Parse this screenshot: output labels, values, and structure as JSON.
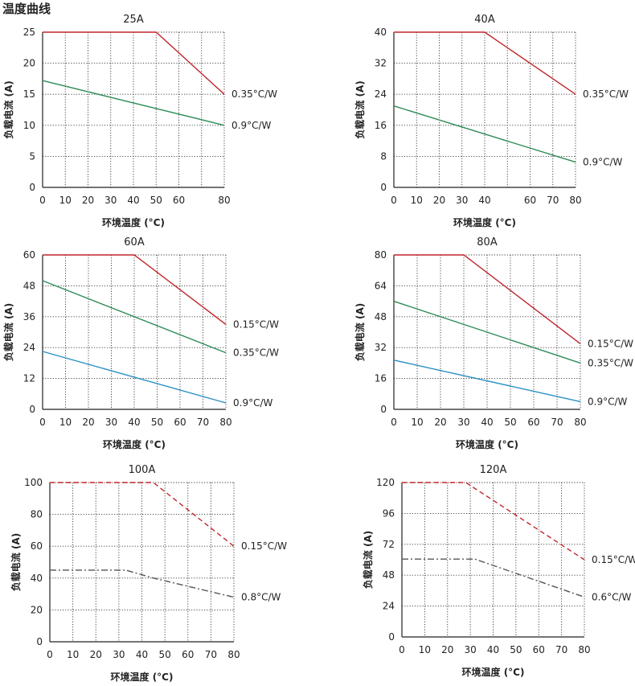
{
  "page": {
    "title": "温度曲线"
  },
  "chart_data": [
    {
      "type": "line",
      "title": "25A",
      "xlabel": "环境温度 (°C)",
      "ylabel": "负载电流 (A)",
      "xlim": [
        0,
        80
      ],
      "ylim": [
        0,
        25
      ],
      "x_ticks": [
        0,
        10,
        20,
        30,
        40,
        50,
        60,
        80
      ],
      "y_ticks": [
        0,
        5,
        10,
        15,
        20,
        25
      ],
      "grid": true,
      "series": [
        {
          "name": "0.35°C/W",
          "color": "#c0272d",
          "dash": "solid",
          "points": [
            [
              0,
              25
            ],
            [
              50,
              25
            ],
            [
              80,
              15
            ]
          ]
        },
        {
          "name": "0.9°C/W",
          "color": "#2e8b57",
          "dash": "solid",
          "points": [
            [
              0,
              17.2
            ],
            [
              80,
              10
            ]
          ]
        }
      ]
    },
    {
      "type": "line",
      "title": "40A",
      "xlabel": "环境温度 (°C)",
      "ylabel": "负载电流 (A)",
      "xlim": [
        0,
        80
      ],
      "ylim": [
        0,
        40
      ],
      "x_ticks": [
        0,
        10,
        20,
        30,
        40,
        60,
        70,
        80
      ],
      "y_ticks": [
        0,
        8,
        16,
        24,
        32,
        40
      ],
      "grid": true,
      "series": [
        {
          "name": "0.35°C/W",
          "color": "#c0272d",
          "dash": "solid",
          "points": [
            [
              0,
              40
            ],
            [
              40,
              40
            ],
            [
              80,
              24
            ]
          ]
        },
        {
          "name": "0.9°C/W",
          "color": "#2e8b57",
          "dash": "solid",
          "points": [
            [
              0,
              21
            ],
            [
              80,
              6.5
            ]
          ]
        }
      ]
    },
    {
      "type": "line",
      "title": "60A",
      "xlabel": "环境温度 (°C)",
      "ylabel": "负载电流 (A)",
      "xlim": [
        0,
        80
      ],
      "ylim": [
        0,
        60
      ],
      "x_ticks": [
        0,
        10,
        20,
        30,
        40,
        50,
        60,
        70,
        80
      ],
      "y_ticks": [
        0,
        12,
        24,
        36,
        48,
        60
      ],
      "grid": true,
      "series": [
        {
          "name": "0.15°C/W",
          "color": "#c0272d",
          "dash": "solid",
          "points": [
            [
              0,
              60
            ],
            [
              40,
              60
            ],
            [
              80,
              33
            ]
          ]
        },
        {
          "name": "0.35°C/W",
          "color": "#2e8b57",
          "dash": "solid",
          "points": [
            [
              0,
              50
            ],
            [
              80,
              22
            ]
          ]
        },
        {
          "name": "0.9°C/W",
          "color": "#2a8fc4",
          "dash": "solid",
          "points": [
            [
              0,
              22.5
            ],
            [
              80,
              2.5
            ]
          ]
        }
      ]
    },
    {
      "type": "line",
      "title": "80A",
      "xlabel": "环境温度 (°C)",
      "ylabel": "负载电流 (A)",
      "xlim": [
        0,
        80
      ],
      "ylim": [
        0,
        80
      ],
      "x_ticks": [
        0,
        10,
        20,
        30,
        40,
        50,
        60,
        70,
        80
      ],
      "y_ticks": [
        0,
        16,
        32,
        48,
        64,
        80
      ],
      "grid": true,
      "series": [
        {
          "name": "0.15°C/W",
          "color": "#c0272d",
          "dash": "solid",
          "points": [
            [
              0,
              80
            ],
            [
              30,
              80
            ],
            [
              80,
              34
            ]
          ]
        },
        {
          "name": "0.35°C/W",
          "color": "#2e8b57",
          "dash": "solid",
          "points": [
            [
              0,
              56
            ],
            [
              80,
              24
            ]
          ]
        },
        {
          "name": "0.9°C/W",
          "color": "#2a8fc4",
          "dash": "solid",
          "points": [
            [
              0,
              25.5
            ],
            [
              80,
              4
            ]
          ]
        }
      ]
    },
    {
      "type": "line",
      "title": "100A",
      "xlabel": "环境温度 (°C)",
      "ylabel": "负载电流 (A)",
      "xlim": [
        0,
        80
      ],
      "ylim": [
        0,
        100
      ],
      "x_ticks": [
        0,
        10,
        20,
        30,
        40,
        50,
        60,
        70,
        80
      ],
      "y_ticks": [
        0,
        20,
        40,
        60,
        80,
        100
      ],
      "grid": true,
      "series": [
        {
          "name": "0.15°C/W",
          "color": "#c0272d",
          "dash": "dash",
          "points": [
            [
              0,
              100
            ],
            [
              45,
              100
            ],
            [
              80,
              60
            ]
          ]
        },
        {
          "name": "0.8°C/W",
          "color": "#555555",
          "dash": "dashdot",
          "points": [
            [
              0,
              45
            ],
            [
              33,
              45
            ],
            [
              45,
              40
            ],
            [
              80,
              28
            ]
          ]
        }
      ]
    },
    {
      "type": "line",
      "title": "120A",
      "xlabel": "环境温度 (°C)",
      "ylabel": "负载电流 (A)",
      "xlim": [
        0,
        80
      ],
      "ylim": [
        0,
        120
      ],
      "x_ticks": [
        0,
        10,
        20,
        30,
        40,
        50,
        60,
        70,
        80
      ],
      "y_ticks": [
        0,
        24,
        48,
        72,
        96,
        120
      ],
      "grid": true,
      "series": [
        {
          "name": "0.15°C/W",
          "color": "#c0272d",
          "dash": "dash",
          "points": [
            [
              0,
              120
            ],
            [
              28,
              120
            ],
            [
              80,
              60
            ]
          ]
        },
        {
          "name": "0.6°C/W",
          "color": "#555555",
          "dash": "dashdot",
          "points": [
            [
              0,
              60.5
            ],
            [
              32,
              60.5
            ],
            [
              80,
              31
            ]
          ]
        }
      ]
    }
  ]
}
